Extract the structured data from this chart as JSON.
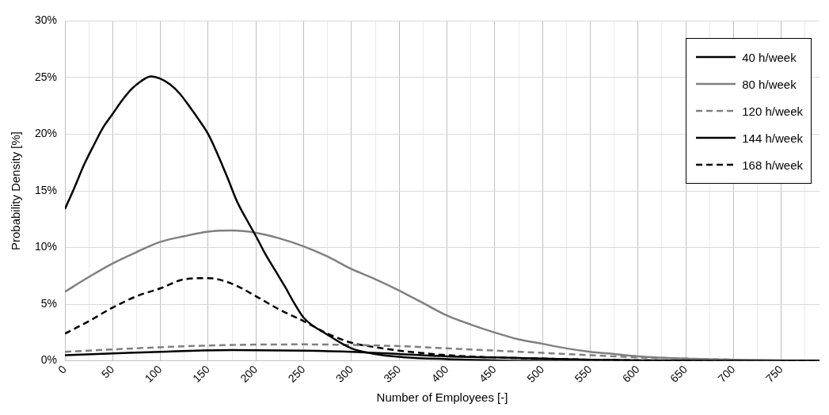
{
  "chart_data": {
    "type": "line",
    "xlabel": "Number of Employees [-]",
    "ylabel": "Probability Density [%]",
    "xlim": [
      0,
      790
    ],
    "xticks": [
      0,
      {
        "value": 25,
        "label": null
      },
      50,
      {
        "value": 75,
        "label": null
      },
      100,
      {
        "value": 125,
        "label": null
      },
      150,
      {
        "value": 175,
        "label": null
      },
      200,
      {
        "value": 225,
        "label": null
      },
      250,
      {
        "value": 275,
        "label": null
      },
      300,
      {
        "value": 325,
        "label": null
      },
      350,
      {
        "value": 375,
        "label": null
      },
      400,
      {
        "value": 425,
        "label": null
      },
      450,
      {
        "value": 475,
        "label": null
      },
      500,
      {
        "value": 525,
        "label": null
      },
      550,
      {
        "value": 575,
        "label": null
      },
      600,
      {
        "value": 625,
        "label": null
      },
      650,
      {
        "value": 675,
        "label": null
      },
      700,
      {
        "value": 725,
        "label": null
      },
      750,
      {
        "value": 775,
        "label": null
      }
    ],
    "ylim": [
      0,
      30
    ],
    "yticks": [
      {
        "value": 0,
        "label": "0%"
      },
      {
        "value": 5,
        "label": "5%"
      },
      {
        "value": 10,
        "label": "10%"
      },
      {
        "value": 15,
        "label": "15%"
      },
      {
        "value": 20,
        "label": "20%"
      },
      {
        "value": 25,
        "label": "25%"
      },
      {
        "value": 30,
        "label": "30%"
      }
    ],
    "grid": true,
    "legend": "top right",
    "marker": "none",
    "series": [
      {
        "name": "40 h/week",
        "color": "#000000",
        "line_style": "solid",
        "x": [
          0,
          10,
          20,
          30,
          40,
          50,
          60,
          70,
          80,
          90,
          100,
          110,
          120,
          130,
          140,
          150,
          160,
          170,
          180,
          190,
          200,
          210,
          220,
          230,
          240,
          250,
          275,
          300,
          325,
          350,
          400,
          450,
          500,
          600,
          700,
          790
        ],
        "values": [
          13.4,
          15.3,
          17.3,
          19.0,
          20.6,
          21.8,
          23.0,
          24.0,
          24.7,
          25.1,
          24.9,
          24.4,
          23.6,
          22.5,
          21.3,
          20.0,
          18.2,
          16.2,
          14.1,
          12.5,
          11.0,
          9.4,
          8.0,
          6.6,
          5.1,
          3.8,
          2.3,
          1.1,
          0.6,
          0.35,
          0.15,
          0.05,
          0,
          0,
          0,
          0
        ]
      },
      {
        "name": "80 h/week",
        "color": "#808080",
        "line_style": "solid",
        "x": [
          0,
          25,
          50,
          75,
          100,
          125,
          150,
          175,
          200,
          225,
          250,
          275,
          300,
          325,
          350,
          375,
          400,
          425,
          450,
          475,
          500,
          525,
          550,
          575,
          600,
          650,
          700,
          750
        ],
        "values": [
          6.1,
          7.4,
          8.6,
          9.6,
          10.5,
          11.0,
          11.4,
          11.5,
          11.3,
          10.8,
          10.1,
          9.2,
          8.1,
          7.2,
          6.2,
          5.1,
          4.0,
          3.2,
          2.5,
          1.9,
          1.5,
          1.1,
          0.8,
          0.6,
          0.4,
          0.2,
          0.1,
          0.05
        ]
      },
      {
        "name": "120 h/week",
        "color": "#808080",
        "line_style": "dashed",
        "x": [
          0,
          100,
          175,
          250,
          300,
          350,
          400,
          450,
          500,
          550,
          600,
          650,
          700
        ],
        "values": [
          0.8,
          1.2,
          1.4,
          1.45,
          1.4,
          1.3,
          1.1,
          0.9,
          0.7,
          0.5,
          0.3,
          0.2,
          0.1
        ]
      },
      {
        "name": "144 h/week",
        "color": "#000000",
        "line_style": "solid",
        "x": [
          0,
          50,
          100,
          175,
          250,
          300,
          350,
          400,
          450,
          500,
          550,
          600,
          700,
          790
        ],
        "values": [
          0.5,
          0.65,
          0.8,
          0.95,
          0.9,
          0.8,
          0.6,
          0.4,
          0.3,
          0.2,
          0.1,
          0.05,
          0.02,
          0
        ]
      },
      {
        "name": "168 h/week",
        "color": "#000000",
        "line_style": "dashed",
        "x": [
          0,
          25,
          50,
          75,
          100,
          125,
          150,
          175,
          200,
          225,
          250,
          275,
          300,
          325,
          350,
          400,
          450,
          500,
          550,
          600,
          700,
          790
        ],
        "values": [
          2.4,
          3.5,
          4.7,
          5.7,
          6.4,
          7.2,
          7.3,
          6.8,
          5.7,
          4.5,
          3.5,
          2.4,
          1.6,
          1.2,
          0.9,
          0.5,
          0.3,
          0.2,
          0.1,
          0.05,
          0,
          0
        ]
      }
    ]
  }
}
